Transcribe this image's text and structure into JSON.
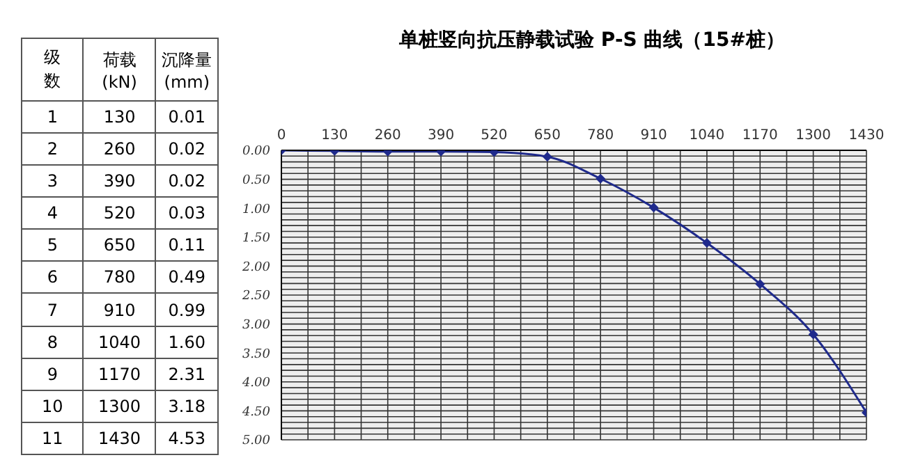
{
  "chart_data": {
    "type": "line",
    "title": "单桩竖向抗压静载试验 P-S 曲线（15#桩）",
    "x": [
      0,
      130,
      260,
      390,
      520,
      650,
      780,
      910,
      1040,
      1170,
      1300,
      1430
    ],
    "series": [
      {
        "color": "#1f2a8c",
        "values": [
          0,
          0.01,
          0.02,
          0.02,
          0.03,
          0.11,
          0.49,
          0.99,
          1.6,
          2.31,
          3.18,
          4.53
        ]
      }
    ],
    "annotations": [
      "级数",
      "荷载 (kN)",
      "沉降量 (mm)",
      "1",
      "2",
      "3",
      "4",
      "5",
      "6",
      "7",
      "8",
      "9",
      "10",
      "11",
      "130",
      "260",
      "390",
      "520",
      "650",
      "780",
      "910",
      "1040",
      "1170",
      "1300",
      "1430",
      "0.01",
      "0.02",
      "0.02",
      "0.03",
      "0.11",
      "0.49",
      "0.99",
      "1.60",
      "2.31",
      "3.18",
      "4.53"
    ],
    "xlim": [
      0,
      1430
    ],
    "xticks": [
      0,
      {
        "value": 65,
        "label": null
      },
      130,
      {
        "value": 195,
        "label": null
      },
      260,
      {
        "value": 325,
        "label": null
      },
      390,
      {
        "value": 455,
        "label": null
      },
      520,
      {
        "value": 585,
        "label": null
      },
      650,
      {
        "value": 715,
        "label": null
      },
      780,
      {
        "value": 845,
        "label": null
      },
      910,
      {
        "value": 975,
        "label": null
      },
      1040,
      {
        "value": 1105,
        "label": null
      },
      1170,
      {
        "value": 1235,
        "label": null
      },
      1300,
      {
        "value": 1365,
        "label": null
      },
      1430
    ],
    "ylim": [
      5,
      0
    ],
    "yticks": [
      {
        "value": 0,
        "label": "0.00"
      },
      {
        "value": 0.1,
        "label": null
      },
      {
        "value": 0.2,
        "label": null
      },
      {
        "value": 0.3,
        "label": null
      },
      {
        "value": 0.4,
        "label": null
      },
      {
        "value": 0.5,
        "label": "0.50"
      },
      {
        "value": 0.6,
        "label": null
      },
      {
        "value": 0.7,
        "label": null
      },
      {
        "value": 0.8,
        "label": null
      },
      {
        "value": 0.9,
        "label": null
      },
      {
        "value": 1,
        "label": "1.00"
      },
      {
        "value": 1.1,
        "label": null
      },
      {
        "value": 1.2,
        "label": null
      },
      {
        "value": 1.3,
        "label": null
      },
      {
        "value": 1.4,
        "label": null
      },
      {
        "value": 1.5,
        "label": "1.50"
      },
      {
        "value": 1.6,
        "label": null
      },
      {
        "value": 1.7,
        "label": null
      },
      {
        "value": 1.8,
        "label": null
      },
      {
        "value": 1.9,
        "label": null
      },
      {
        "value": 2,
        "label": "2.00"
      },
      {
        "value": 2.1,
        "label": null
      },
      {
        "value": 2.2,
        "label": null
      },
      {
        "value": 2.3,
        "label": null
      },
      {
        "value": 2.4,
        "label": null
      },
      {
        "value": 2.5,
        "label": "2.50"
      },
      {
        "value": 2.6,
        "label": null
      },
      {
        "value": 2.7,
        "label": null
      },
      {
        "value": 2.8,
        "label": null
      },
      {
        "value": 2.9,
        "label": null
      },
      {
        "value": 3,
        "label": "3.00"
      },
      {
        "value": 3.1,
        "label": null
      },
      {
        "value": 3.2,
        "label": null
      },
      {
        "value": 3.3,
        "label": null
      },
      {
        "value": 3.4,
        "label": null
      },
      {
        "value": 3.5,
        "label": "3.50"
      },
      {
        "value": 3.6,
        "label": null
      },
      {
        "value": 3.7,
        "label": null
      },
      {
        "value": 3.8,
        "label": null
      },
      {
        "value": 3.9,
        "label": null
      },
      {
        "value": 4,
        "label": "4.00"
      },
      {
        "value": 4.1,
        "label": null
      },
      {
        "value": 4.2,
        "label": null
      },
      {
        "value": 4.3,
        "label": null
      },
      {
        "value": 4.4,
        "label": null
      },
      {
        "value": 4.5,
        "label": "4.50"
      },
      {
        "value": 4.6,
        "label": null
      },
      {
        "value": 4.7,
        "label": null
      },
      {
        "value": 4.8,
        "label": null
      },
      {
        "value": 4.9,
        "label": null
      },
      {
        "value": 5,
        "label": "5.00"
      }
    ],
    "grid": true,
    "marker": "diamond",
    "line_style": "solid"
  }
}
